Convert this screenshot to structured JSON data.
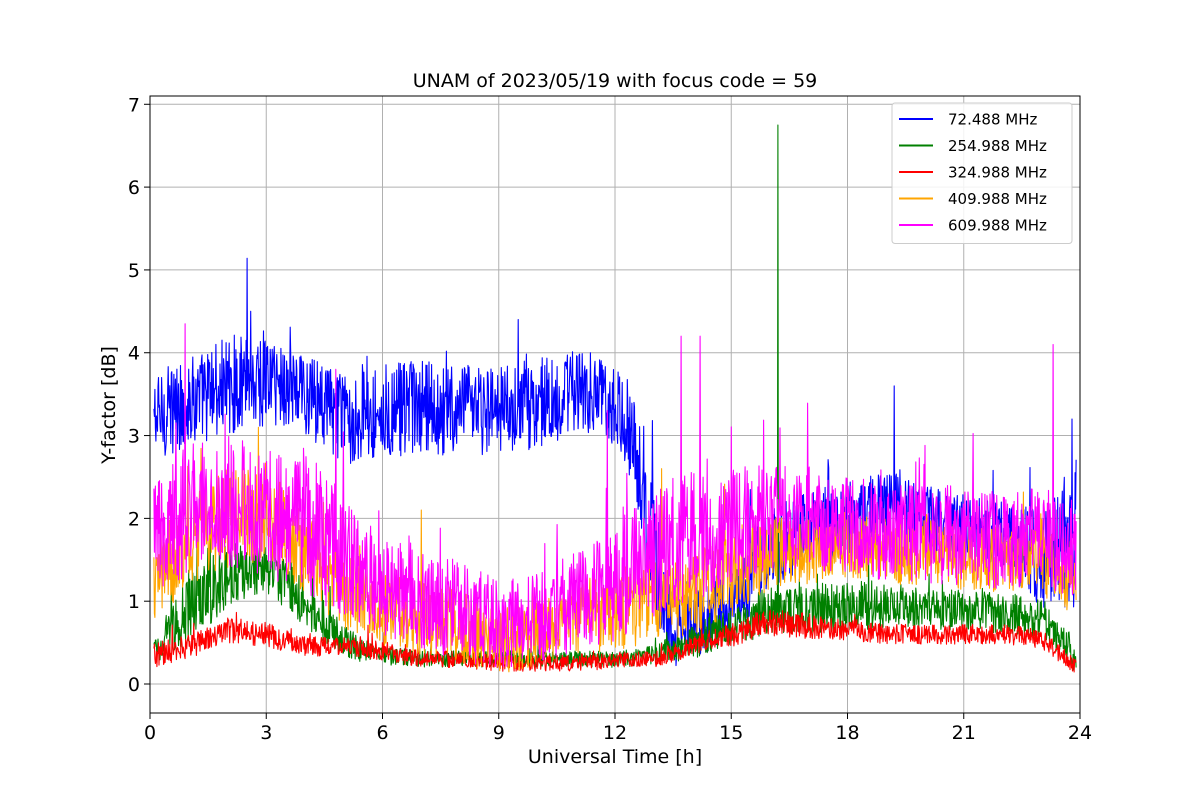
{
  "chart_data": {
    "type": "line",
    "title": "UNAM of 2023/05/19 with focus code = 59",
    "xlabel": "Universal Time [h]",
    "ylabel": "Y-factor [dB]",
    "xlim": [
      0,
      24
    ],
    "ylim": [
      -0.35,
      7.1
    ],
    "xticks": [
      0,
      3,
      6,
      9,
      12,
      15,
      18,
      21,
      24
    ],
    "xtick_labels": [
      "0",
      "3",
      "6",
      "9",
      "12",
      "15",
      "18",
      "21",
      "24"
    ],
    "yticks": [
      0,
      1,
      2,
      3,
      4,
      5,
      6,
      7
    ],
    "ytick_labels": [
      "0",
      "1",
      "2",
      "3",
      "4",
      "5",
      "6",
      "7"
    ],
    "grid": true,
    "legend_position": "top-right",
    "series": [
      {
        "name": " 72.488 MHz",
        "color": "#0000ff",
        "x": [
          0.1,
          1,
          2,
          3,
          4,
          5,
          6,
          7,
          8,
          9,
          10,
          11,
          11.8,
          12.5,
          13,
          13.5,
          14,
          15,
          16,
          17,
          18,
          19,
          20,
          21,
          22,
          23,
          23.9
        ],
        "y_mid": [
          3.2,
          3.4,
          3.6,
          3.7,
          3.5,
          3.2,
          3.3,
          3.3,
          3.3,
          3.3,
          3.4,
          3.5,
          3.5,
          3.0,
          1.5,
          0.6,
          0.7,
          1.0,
          1.6,
          1.9,
          2.0,
          2.1,
          2.0,
          1.9,
          1.8,
          1.5,
          1.8
        ],
        "y_amp": [
          0.5,
          0.55,
          0.6,
          0.6,
          0.5,
          0.55,
          0.6,
          0.6,
          0.55,
          0.55,
          0.55,
          0.5,
          0.5,
          0.6,
          0.8,
          0.4,
          0.4,
          0.5,
          0.5,
          0.45,
          0.45,
          0.45,
          0.4,
          0.4,
          0.4,
          0.6,
          0.9
        ],
        "peaks": [
          [
            2.6,
            4.5
          ],
          [
            9.5,
            4.4
          ],
          [
            19.2,
            3.6
          ],
          [
            23.8,
            3.2
          ]
        ]
      },
      {
        "name": "254.988 MHz",
        "color": "#008000",
        "x": [
          0.1,
          1,
          2,
          3,
          4,
          5,
          6,
          7,
          8,
          9,
          10,
          11,
          12,
          13,
          14,
          15,
          16,
          17,
          18,
          19,
          20,
          21,
          22,
          23,
          23.9
        ],
        "y_mid": [
          0.4,
          0.9,
          1.3,
          1.4,
          1.0,
          0.5,
          0.35,
          0.3,
          0.3,
          0.3,
          0.3,
          0.3,
          0.3,
          0.35,
          0.5,
          0.7,
          0.9,
          0.9,
          0.95,
          0.95,
          0.9,
          0.9,
          0.85,
          0.8,
          0.3
        ],
        "y_amp": [
          0.2,
          0.4,
          0.4,
          0.3,
          0.3,
          0.2,
          0.12,
          0.1,
          0.1,
          0.1,
          0.1,
          0.1,
          0.1,
          0.12,
          0.2,
          0.25,
          0.3,
          0.3,
          0.3,
          0.3,
          0.25,
          0.25,
          0.25,
          0.25,
          0.2
        ],
        "peaks": [
          [
            16.2,
            6.75
          ],
          [
            4.2,
            1.9
          ]
        ]
      },
      {
        "name": "324.988 MHz",
        "color": "#ff0000",
        "x": [
          0.1,
          1,
          2,
          3,
          4,
          5,
          6,
          7,
          8,
          9,
          10,
          11,
          12,
          13,
          14,
          15,
          16,
          17,
          18,
          19,
          20,
          21,
          22,
          23,
          23.9
        ],
        "y_mid": [
          0.35,
          0.45,
          0.65,
          0.6,
          0.45,
          0.45,
          0.4,
          0.3,
          0.3,
          0.25,
          0.25,
          0.25,
          0.28,
          0.3,
          0.45,
          0.6,
          0.75,
          0.7,
          0.65,
          0.6,
          0.6,
          0.6,
          0.6,
          0.55,
          0.2
        ],
        "y_amp": [
          0.15,
          0.15,
          0.15,
          0.15,
          0.12,
          0.12,
          0.12,
          0.1,
          0.1,
          0.1,
          0.1,
          0.1,
          0.1,
          0.1,
          0.12,
          0.15,
          0.18,
          0.15,
          0.12,
          0.12,
          0.12,
          0.12,
          0.12,
          0.12,
          0.12
        ],
        "peaks": []
      },
      {
        "name": "409.988 MHz",
        "color": "#ffa500",
        "x": [
          0.1,
          1,
          2,
          3,
          4,
          5,
          6,
          7,
          8,
          9,
          10,
          11,
          12,
          13,
          14,
          15,
          16,
          17,
          18,
          19,
          20,
          21,
          22,
          23,
          23.9
        ],
        "y_mid": [
          1.2,
          1.8,
          2.0,
          2.1,
          1.6,
          1.1,
          0.9,
          0.8,
          0.7,
          0.5,
          0.6,
          0.8,
          0.9,
          1.0,
          1.1,
          1.3,
          1.6,
          1.6,
          1.7,
          1.6,
          1.6,
          1.5,
          1.5,
          1.5,
          1.2
        ],
        "y_amp": [
          0.5,
          0.6,
          0.6,
          0.6,
          0.5,
          0.45,
          0.45,
          0.45,
          0.45,
          0.4,
          0.4,
          0.45,
          0.5,
          0.5,
          0.5,
          0.5,
          0.45,
          0.4,
          0.4,
          0.4,
          0.4,
          0.4,
          0.4,
          0.4,
          0.5
        ],
        "peaks": [
          [
            2.8,
            3.1
          ],
          [
            7.0,
            2.1
          ],
          [
            13.2,
            2.6
          ]
        ]
      },
      {
        "name": "609.988 MHz",
        "color": "#ff00ff",
        "x": [
          0.1,
          1,
          2,
          3,
          4,
          5,
          6,
          7,
          8,
          9,
          10,
          11,
          12,
          13,
          14,
          15,
          16,
          17,
          18,
          19,
          20,
          21,
          22,
          23,
          23.9
        ],
        "y_mid": [
          1.8,
          2.1,
          2.2,
          2.1,
          2.0,
          1.5,
          1.2,
          1.0,
          0.9,
          0.7,
          0.8,
          1.0,
          1.2,
          1.6,
          1.8,
          1.9,
          2.0,
          2.0,
          1.9,
          1.8,
          1.8,
          1.8,
          1.7,
          1.8,
          1.6
        ],
        "y_amp": [
          0.7,
          0.8,
          0.8,
          0.8,
          0.9,
          0.7,
          0.6,
          0.6,
          0.6,
          0.55,
          0.55,
          0.6,
          0.7,
          0.8,
          0.8,
          0.7,
          0.7,
          0.6,
          0.6,
          0.6,
          0.6,
          0.6,
          0.6,
          0.6,
          0.6
        ],
        "peaks": [
          [
            0.9,
            4.35
          ],
          [
            4.8,
            3.8
          ],
          [
            13.7,
            4.2
          ],
          [
            14.2,
            4.2
          ],
          [
            23.3,
            4.1
          ],
          [
            11.8,
            3.3
          ]
        ]
      }
    ]
  }
}
